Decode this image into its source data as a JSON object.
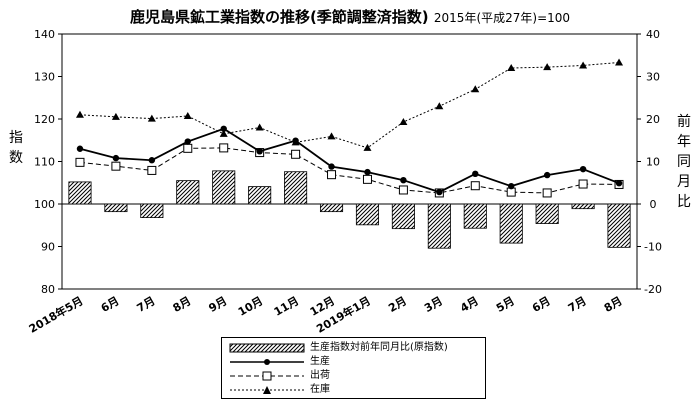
{
  "chart_data": {
    "type": "bar+line",
    "title": "鹿児島県鉱工業指数の推移(季節調整済指数)",
    "subtitle": "2015年(平成27年)=100",
    "ylabel_left": "指数",
    "ylabel_right": "前年同月比",
    "ylim_left": [
      80,
      140
    ],
    "yticks_left": [
      "80",
      "90",
      "100",
      "110",
      "120",
      "130",
      "140"
    ],
    "ylim_right": [
      -20,
      40
    ],
    "yticks_right": [
      "-20",
      "-10",
      "0",
      "10",
      "20",
      "30",
      "40"
    ],
    "categories": [
      "2018年5月",
      "6月",
      "7月",
      "8月",
      "9月",
      "10月",
      "11月",
      "12月",
      "2019年1月",
      "2月",
      "3月",
      "4月",
      "5月",
      "6月",
      "7月",
      "8月"
    ],
    "legend_placement": "bottom-center",
    "series": [
      {
        "name": "生産指数対前年同月比(原指数)",
        "kind": "bar",
        "axis": "right",
        "color": "#000000",
        "values": [
          5.2,
          -1.8,
          -3.2,
          5.5,
          7.8,
          4.1,
          7.6,
          -1.8,
          -4.9,
          -5.8,
          -10.4,
          -5.7,
          -9.2,
          -4.6,
          -1.1,
          -10.2
        ]
      },
      {
        "name": "生産",
        "kind": "line",
        "axis": "left",
        "style": "solid",
        "marker": "filled-circle",
        "color": "#000000",
        "values": [
          113.0,
          110.8,
          110.3,
          114.7,
          117.7,
          112.4,
          114.9,
          108.8,
          107.5,
          105.6,
          102.8,
          107.1,
          104.2,
          106.8,
          108.2,
          104.9
        ]
      },
      {
        "name": "出荷",
        "kind": "line",
        "axis": "left",
        "style": "dashed",
        "marker": "open-square",
        "color": "#000000",
        "values": [
          109.8,
          108.9,
          107.9,
          113.1,
          113.2,
          112.1,
          111.7,
          106.9,
          105.8,
          103.3,
          102.6,
          104.3,
          102.8,
          102.6,
          104.7,
          104.6
        ]
      },
      {
        "name": "在庫",
        "kind": "line",
        "axis": "right",
        "style": "dotted",
        "marker": "filled-triangle",
        "color": "#000000",
        "values": [
          21.0,
          20.5,
          20.1,
          20.7,
          16.5,
          18.0,
          14.5,
          15.9,
          13.2,
          19.3,
          23.0,
          27.0,
          32.0,
          32.2,
          32.6,
          33.3
        ]
      }
    ]
  }
}
